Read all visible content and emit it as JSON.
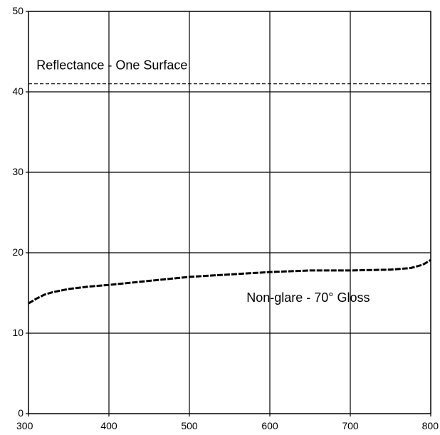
{
  "chart_data": {
    "type": "line",
    "title": "",
    "xlabel": "",
    "ylabel": "",
    "xlim": [
      300,
      800
    ],
    "ylim": [
      0,
      50
    ],
    "x_ticks": [
      300,
      400,
      500,
      600,
      700,
      800
    ],
    "y_ticks": [
      0,
      10,
      20,
      30,
      40,
      50
    ],
    "grid": true,
    "legend": "none",
    "series": [
      {
        "name": "Reflectance - One Surface",
        "style": "dashed-thin",
        "color": "#000000",
        "x": [
          300,
          800
        ],
        "y": [
          41,
          41
        ]
      },
      {
        "name": "Non-glare - 70° Gloss",
        "style": "dashed-thick",
        "color": "#000000",
        "x": [
          300,
          310,
          320,
          330,
          350,
          375,
          400,
          450,
          500,
          550,
          600,
          650,
          700,
          750,
          775,
          790,
          800
        ],
        "y": [
          13.7,
          14.3,
          14.8,
          15.1,
          15.5,
          15.8,
          16.0,
          16.5,
          17.0,
          17.3,
          17.6,
          17.8,
          17.8,
          17.9,
          18.1,
          18.5,
          19.1
        ]
      }
    ],
    "annotations": [
      {
        "text": "Reflectance - One Surface",
        "x": 310,
        "y": 42.8
      },
      {
        "text": "Non-glare - 70° Gloss",
        "x": 571,
        "y": 13.9
      }
    ]
  }
}
